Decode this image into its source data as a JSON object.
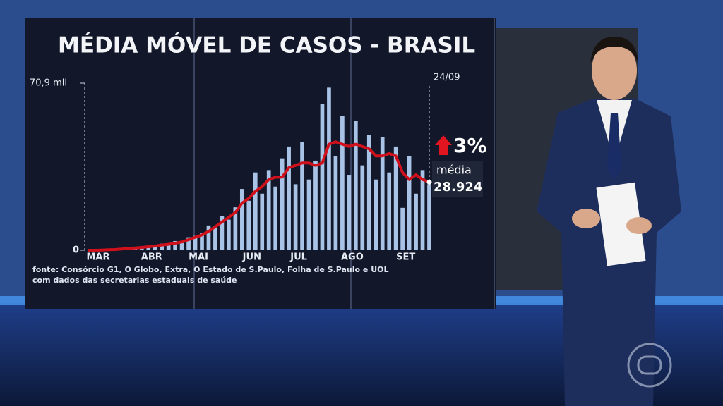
{
  "chart_data": {
    "type": "bar",
    "title": "MÉDIA MÓVEL DE CASOS - BRASIL",
    "date": "24/09",
    "change": "3%",
    "average_caption": "média",
    "average": "28.924",
    "source_lines": [
      "fonte: Consórcio G1, O Globo, Extra, O Estado de S.Paulo, Folha de S.Paulo e UOL",
      "com dados das secretarias estaduais de saúde"
    ],
    "categories": [
      "MAR",
      null,
      null,
      null,
      null,
      null,
      null,
      null,
      "ABR",
      null,
      null,
      null,
      null,
      null,
      null,
      "MAI",
      null,
      null,
      null,
      null,
      null,
      null,
      null,
      "JUN",
      null,
      null,
      null,
      null,
      null,
      null,
      "JUL",
      null,
      null,
      null,
      null,
      null,
      null,
      null,
      "AGO",
      null,
      null,
      null,
      null,
      null,
      null,
      null,
      "SET",
      null,
      null,
      null,
      null,
      null
    ],
    "ylim": [
      0,
      70900
    ],
    "yticks": [
      0,
      {
        "value": 70900,
        "label": "70,9 mil"
      }
    ],
    "series": [
      {
        "type": "bar",
        "color": "#a9c3e6",
        "values": [
          0,
          0,
          100,
          200,
          400,
          600,
          900,
          1200,
          1100,
          1900,
          2000,
          2800,
          2400,
          3900,
          3200,
          5500,
          6100,
          7200,
          10500,
          9800,
          14500,
          13000,
          18200,
          26000,
          21000,
          33000,
          24000,
          34000,
          27000,
          39000,
          44000,
          28000,
          46000,
          30000,
          38000,
          62000,
          69000,
          40000,
          57000,
          32000,
          55000,
          36000,
          49000,
          30000,
          48000,
          33000,
          44000,
          18000,
          40000,
          24000,
          34000,
          28000
        ]
      },
      {
        "type": "line",
        "color": "#d0111b",
        "values": [
          0,
          0,
          100,
          200,
          300,
          500,
          800,
          1000,
          1200,
          1500,
          1800,
          2200,
          2500,
          3000,
          3500,
          4500,
          5500,
          6500,
          8000,
          10000,
          12000,
          14000,
          16000,
          20000,
          22000,
          25000,
          27000,
          30000,
          31000,
          31000,
          35000,
          36000,
          37000,
          37000,
          36000,
          37000,
          45000,
          46000,
          45000,
          44000,
          45000,
          44000,
          43000,
          40000,
          40000,
          41000,
          40000,
          33000,
          30000,
          32000,
          30000,
          28924
        ]
      }
    ]
  }
}
